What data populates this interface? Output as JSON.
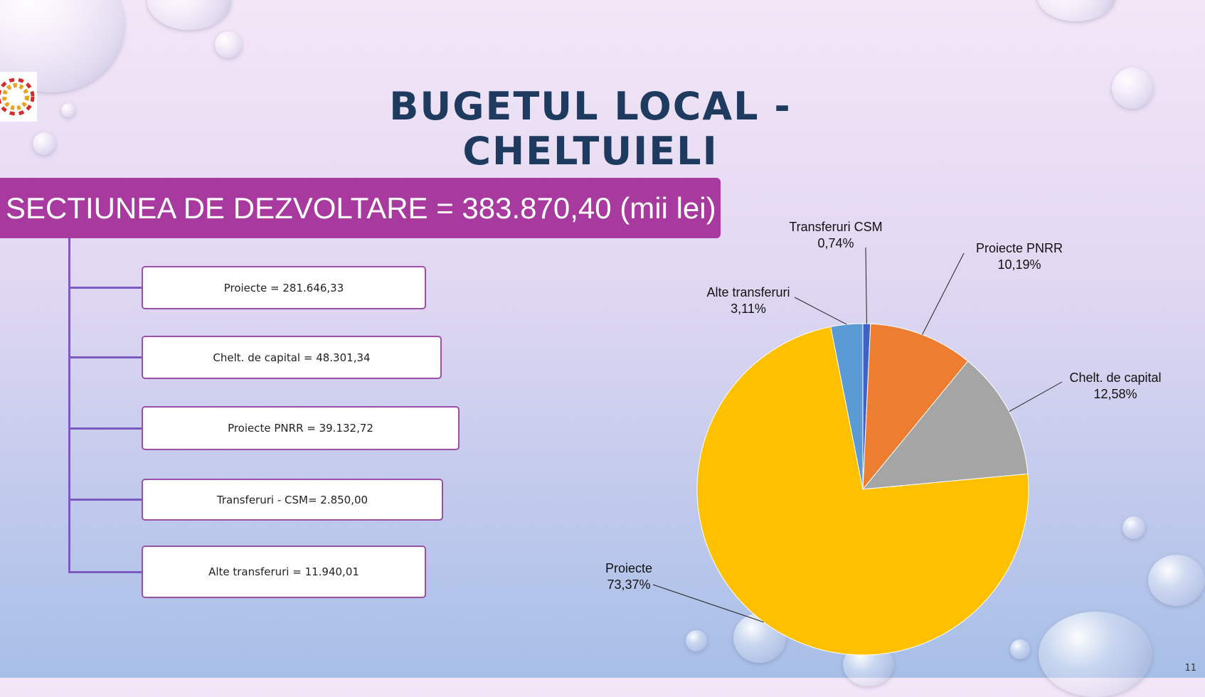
{
  "slide": {
    "title": "BUGETUL LOCAL - CHELTUIELI",
    "banner": "SECTIUNEA DE DEZVOLTARE = 383.870,40 (mii lei)",
    "page_number": "11"
  },
  "tree_items": [
    "Proiecte = 281.646,33",
    "Chelt. de capital = 48.301,34",
    "Proiecte PNRR = 39.132,72",
    "Transferuri - CSM= 2.850,00",
    "Alte transferuri = 11.940,01"
  ],
  "colors": {
    "banner": "#a83a9f",
    "title": "#1f3a5f"
  },
  "chart_data": {
    "type": "pie",
    "slices": [
      {
        "name": "Transferuri CSM",
        "label": "0,74%",
        "value": 0.74,
        "color": "#3f63c4"
      },
      {
        "name": "Proiecte PNRR",
        "label": "10,19%",
        "value": 10.19,
        "color": "#ed7d31"
      },
      {
        "name": "Chelt. de capital",
        "label": "12,58%",
        "value": 12.58,
        "color": "#a5a5a5"
      },
      {
        "name": "Proiecte",
        "label": "73,37%",
        "value": 73.37,
        "color": "#ffc000"
      },
      {
        "name": "Alte transferuri",
        "label": "3,11%",
        "value": 3.11,
        "color": "#5b9bd5"
      }
    ]
  }
}
